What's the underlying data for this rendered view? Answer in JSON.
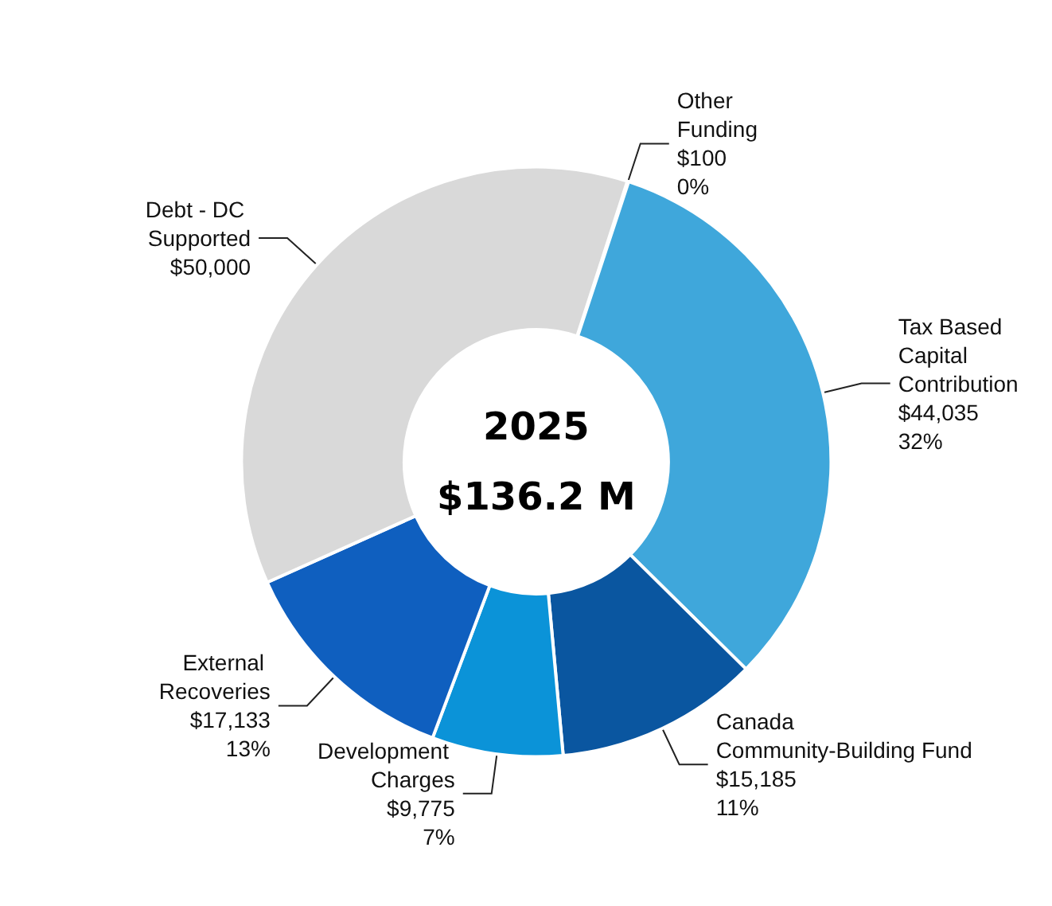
{
  "chart_data": {
    "type": "donut",
    "categories": [
      "Other Funding",
      "Tax Based Capital Contribution",
      "Canada Community-Building Fund",
      "Development Charges",
      "External Recoveries",
      "Debt - DC Supported"
    ],
    "values": [
      100,
      44035,
      15185,
      9775,
      17133,
      50000
    ],
    "value_labels": [
      "$100\n0%",
      "$44,035\n32%",
      "$15,185\n11%",
      "$9,775\n7%",
      "$17,133\n13%",
      "$50,000"
    ],
    "colors": [
      "#9dc3e6",
      "#3fa7db",
      "#0a56a0",
      "#0b93d8",
      "#0f5fbf",
      "#d9d9d9"
    ],
    "annotations": [
      "2025",
      "$136.2 M"
    ],
    "legend": false
  }
}
